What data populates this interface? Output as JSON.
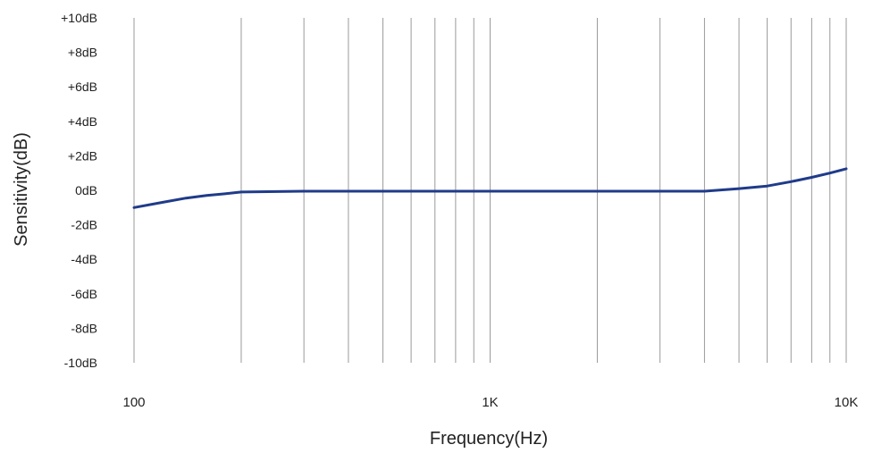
{
  "chart_data": {
    "type": "line",
    "title": "",
    "xlabel": "Frequency(Hz)",
    "ylabel": "Sensitivity(dB)",
    "xscale": "log",
    "xlim": [
      100,
      10000
    ],
    "ylim": [
      -10,
      10
    ],
    "x_ticks": [
      {
        "value": 100,
        "label": "100"
      },
      {
        "value": 1000,
        "label": "1K"
      },
      {
        "value": 10000,
        "label": "10K"
      }
    ],
    "y_ticks": [
      {
        "value": 10,
        "label": "+10dB"
      },
      {
        "value": 8,
        "label": "+8dB"
      },
      {
        "value": 6,
        "label": "+6dB"
      },
      {
        "value": 4,
        "label": "+4dB"
      },
      {
        "value": 2,
        "label": "+2dB"
      },
      {
        "value": 0,
        "label": "0dB"
      },
      {
        "value": -2,
        "label": "-2dB"
      },
      {
        "value": -4,
        "label": "-4dB"
      },
      {
        "value": -6,
        "label": "-6dB"
      },
      {
        "value": -8,
        "label": "-8dB"
      },
      {
        "value": -10,
        "label": "-10dB"
      }
    ],
    "grid": "vertical log lines",
    "line_color": "#1f3b8a",
    "series": [
      {
        "x": [
          100,
          120,
          140,
          160,
          180,
          200,
          300,
          500,
          1000,
          2000,
          3000,
          4000,
          5000,
          6000,
          7000,
          8000,
          9000,
          10000
        ],
        "y": [
          -1.0,
          -0.7,
          -0.45,
          -0.3,
          -0.2,
          -0.1,
          -0.05,
          -0.05,
          -0.05,
          -0.05,
          -0.05,
          -0.05,
          0.1,
          0.25,
          0.5,
          0.75,
          1.0,
          1.25
        ]
      }
    ]
  }
}
